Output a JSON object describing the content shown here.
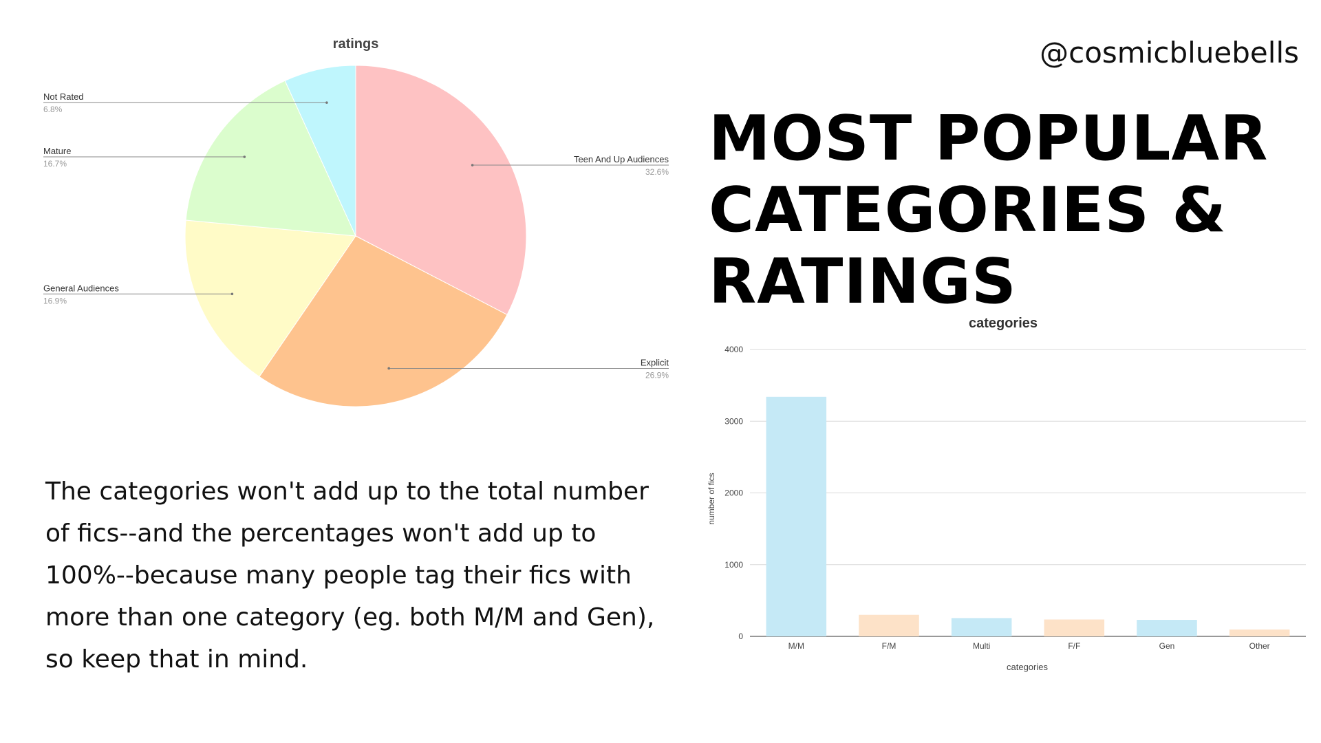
{
  "handle": "@cosmicbluebells",
  "headline": {
    "line1": "MOST POPULAR",
    "line2": "CATEGORIES & RATINGS"
  },
  "note": "The categories won't add up to the total number of fics--and the percentages won't add up to 100%--because many people tag their fics with more than one category (eg. both M/M and Gen), so keep that in mind.",
  "chart_data": [
    {
      "type": "pie",
      "title": "ratings",
      "slices": [
        {
          "label": "Teen And Up Audiences",
          "value": 32.6,
          "display": "32.6%",
          "color": "#fec2c3"
        },
        {
          "label": "Explicit",
          "value": 26.9,
          "display": "26.9%",
          "color": "#fec38e"
        },
        {
          "label": "General Audiences",
          "value": 16.9,
          "display": "16.9%",
          "color": "#fffbc7"
        },
        {
          "label": "Mature",
          "value": 16.7,
          "display": "16.7%",
          "color": "#dbfdcd"
        },
        {
          "label": "Not Rated",
          "value": 6.8,
          "display": "6.8%",
          "color": "#bff6fd"
        }
      ]
    },
    {
      "type": "bar",
      "title": "categories",
      "xlabel": "categories",
      "ylabel": "number of fics",
      "categories": [
        "M/M",
        "F/M",
        "Multi",
        "F/F",
        "Gen",
        "Other"
      ],
      "values": [
        3340,
        300,
        255,
        235,
        230,
        95
      ],
      "colors": [
        "#c5e9f6",
        "#fde2c8",
        "#c5e9f6",
        "#fde2c8",
        "#c5e9f6",
        "#fde2c8"
      ],
      "ylim": [
        0,
        4000
      ],
      "yticks": [
        0,
        1000,
        2000,
        3000,
        4000
      ],
      "grid": true
    }
  ]
}
